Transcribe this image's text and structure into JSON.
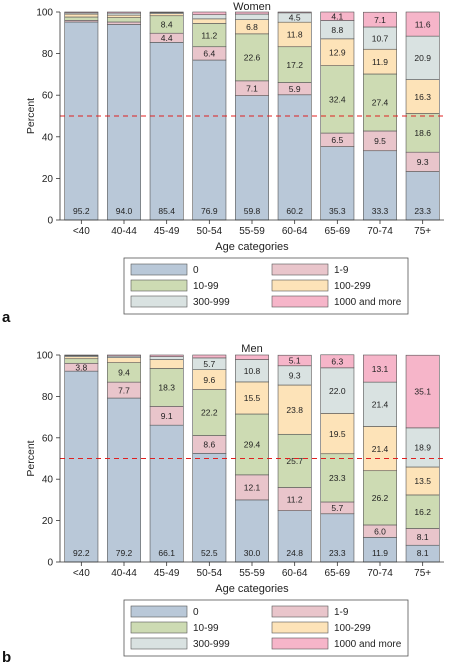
{
  "chart_data": [
    {
      "type": "bar",
      "stacked": true,
      "panel_label": "a",
      "title": "Women",
      "xlabel": "Age categories",
      "ylabel": "Percent",
      "ylim": [
        0,
        100
      ],
      "yticks": [
        0,
        20,
        40,
        60,
        80,
        100
      ],
      "reference_line": 50,
      "grid": false,
      "legend_position": "bottom",
      "categories": [
        "<40",
        "40-44",
        "45-49",
        "50-54",
        "55-59",
        "60-64",
        "65-69",
        "70-74",
        "75+"
      ],
      "series": [
        {
          "name": "0",
          "color": "#b9c8d8",
          "values": [
            95.2,
            94.0,
            85.4,
            76.9,
            59.8,
            60.2,
            35.3,
            33.3,
            23.3
          ],
          "labels": [
            "95.2",
            "94.0",
            "85.4",
            "76.9",
            "59.8",
            "60.2",
            "35.3",
            "33.3",
            "23.3"
          ]
        },
        {
          "name": "1-9",
          "color": "#e9c5cb",
          "values": [
            0.8,
            1.2,
            4.4,
            6.4,
            7.1,
            5.9,
            6.5,
            9.5,
            9.3
          ],
          "labels": [
            "",
            "",
            "4.4",
            "6.4",
            "7.1",
            "5.9",
            "6.5",
            "9.5",
            "9.3"
          ]
        },
        {
          "name": "10-99",
          "color": "#cddbb3",
          "values": [
            1.6,
            2.1,
            8.4,
            11.2,
            22.6,
            17.2,
            32.4,
            27.4,
            18.6
          ],
          "labels": [
            "",
            "",
            "8.4",
            "11.2",
            "22.6",
            "17.2",
            "32.4",
            "27.4",
            "18.6"
          ]
        },
        {
          "name": "100-299",
          "color": "#fde3b8",
          "values": [
            1.4,
            1.2,
            1.0,
            2.2,
            6.8,
            11.8,
            12.9,
            11.9,
            16.3
          ],
          "labels": [
            "",
            "",
            "",
            "",
            "6.8",
            "11.8",
            "12.9",
            "11.9",
            "16.3"
          ]
        },
        {
          "name": "300-999",
          "color": "#d9e2e1",
          "values": [
            0.6,
            1.0,
            0.5,
            2.0,
            2.7,
            4.5,
            8.8,
            10.7,
            20.9
          ],
          "labels": [
            "",
            "",
            "",
            "",
            "",
            "4.5",
            "8.8",
            "10.7",
            "20.9"
          ]
        },
        {
          "name": "1000 and more",
          "color": "#f6b5c9",
          "values": [
            0.4,
            0.5,
            0.3,
            1.3,
            1.0,
            0.4,
            4.1,
            7.1,
            11.6
          ],
          "labels": [
            "",
            "",
            "",
            "",
            "",
            "",
            "4.1",
            "7.1",
            "11.6"
          ]
        }
      ]
    },
    {
      "type": "bar",
      "stacked": true,
      "panel_label": "b",
      "title": "Men",
      "xlabel": "Age categories",
      "ylabel": "Percent",
      "ylim": [
        0,
        100
      ],
      "yticks": [
        0,
        20,
        40,
        60,
        80,
        100
      ],
      "reference_line": 50,
      "grid": false,
      "legend_position": "bottom",
      "categories": [
        "<40",
        "40-44",
        "45-49",
        "50-54",
        "55-59",
        "60-64",
        "65-69",
        "70-74",
        "75+"
      ],
      "series": [
        {
          "name": "0",
          "color": "#b9c8d8",
          "values": [
            92.2,
            79.2,
            66.1,
            52.5,
            30.0,
            24.8,
            23.3,
            11.9,
            8.1
          ],
          "labels": [
            "92.2",
            "79.2",
            "66.1",
            "52.5",
            "30.0",
            "24.8",
            "23.3",
            "11.9",
            "8.1"
          ]
        },
        {
          "name": "1-9",
          "color": "#e9c5cb",
          "values": [
            3.8,
            7.7,
            9.1,
            8.6,
            12.1,
            11.2,
            5.7,
            6.0,
            8.1
          ],
          "labels": [
            "3.8",
            "7.7",
            "9.1",
            "8.6",
            "12.1",
            "11.2",
            "5.7",
            "6.0",
            "8.1"
          ]
        },
        {
          "name": "10-99",
          "color": "#cddbb3",
          "values": [
            2.2,
            9.4,
            18.3,
            22.2,
            29.4,
            25.7,
            23.3,
            26.2,
            16.2
          ],
          "labels": [
            "",
            "9.4",
            "18.3",
            "22.2",
            "29.4",
            "25.7",
            "23.3",
            "26.2",
            "16.2"
          ]
        },
        {
          "name": "100-299",
          "color": "#fde3b8",
          "values": [
            1.0,
            2.4,
            4.3,
            9.6,
            15.5,
            23.8,
            19.5,
            21.4,
            13.5
          ],
          "labels": [
            "",
            "",
            "",
            "9.6",
            "15.5",
            "23.8",
            "19.5",
            "21.4",
            "13.5"
          ]
        },
        {
          "name": "300-999",
          "color": "#d9e2e1",
          "values": [
            0.5,
            0.8,
            1.4,
            5.7,
            10.8,
            9.3,
            22.0,
            21.4,
            18.9
          ],
          "labels": [
            "",
            "",
            "",
            "5.7",
            "10.8",
            "9.3",
            "22.0",
            "21.4",
            "18.9"
          ]
        },
        {
          "name": "1000 and more",
          "color": "#f6b5c9",
          "values": [
            0.3,
            0.5,
            0.8,
            1.4,
            2.2,
            5.1,
            6.3,
            13.1,
            35.1
          ],
          "labels": [
            "",
            "",
            "",
            "",
            "",
            "5.1",
            "6.3",
            "13.1",
            "35.1"
          ]
        }
      ]
    }
  ]
}
